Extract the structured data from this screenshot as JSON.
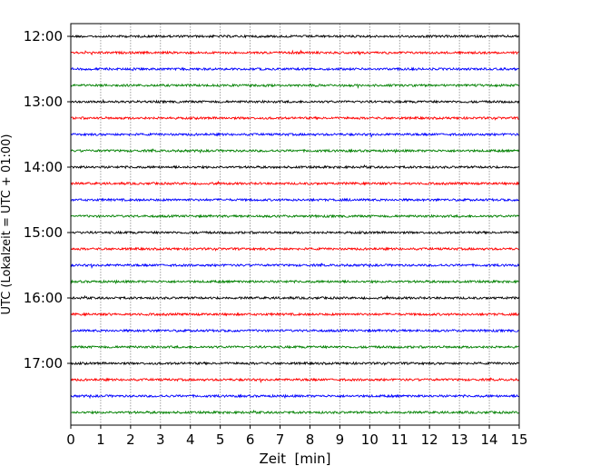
{
  "chart_data": {
    "type": "line",
    "title": "",
    "xlabel": "Zeit  [min]",
    "ylabel": "UTC (Lokalzeit = UTC + 01:00)",
    "xlim": [
      0,
      15
    ],
    "ylim_hours": [
      11.8,
      17.95
    ],
    "x_ticks": [
      "0",
      "1",
      "2",
      "3",
      "4",
      "5",
      "6",
      "7",
      "8",
      "9",
      "10",
      "11",
      "12",
      "13",
      "14",
      "15"
    ],
    "y_ticks": [
      {
        "label": "12:00",
        "hour": 12
      },
      {
        "label": "13:00",
        "hour": 13
      },
      {
        "label": "14:00",
        "hour": 14
      },
      {
        "label": "15:00",
        "hour": 15
      },
      {
        "label": "16:00",
        "hour": 16
      },
      {
        "label": "17:00",
        "hour": 17
      }
    ],
    "grid": "vertical dotted at each minute",
    "trace_interval_min": 15,
    "trace_start_hour": 12,
    "trace_count": 24,
    "trace_colors": [
      "#000000",
      "#ff0000",
      "#0000ff",
      "#008000"
    ],
    "description_of_series": "helicorder traces with low-amplitude noise"
  }
}
